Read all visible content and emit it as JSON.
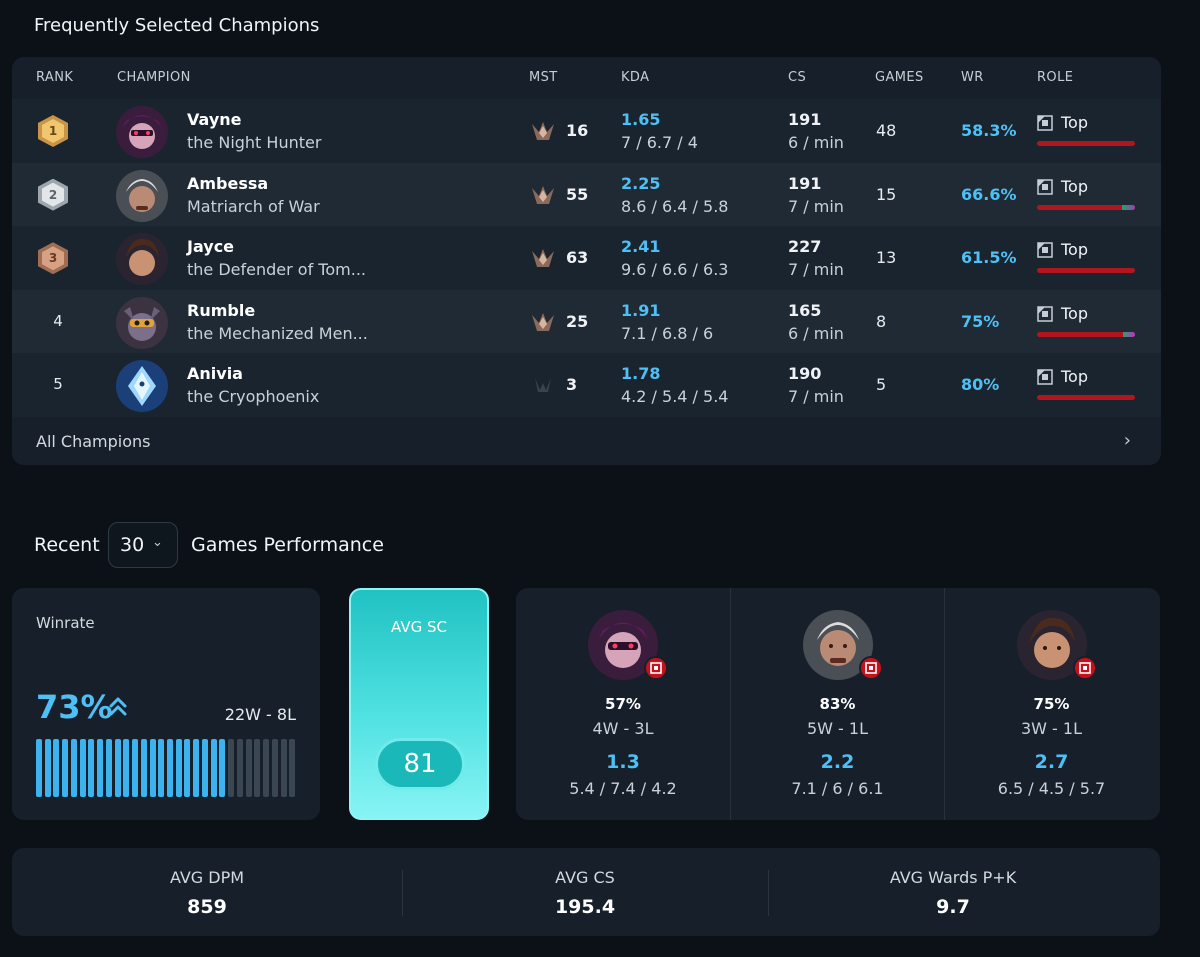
{
  "section_title": "Frequently Selected Champions",
  "table": {
    "headers": {
      "rank": "RANK",
      "champion": "CHAMPION",
      "mst": "MST",
      "kda": "KDA",
      "cs": "CS",
      "games": "GAMES",
      "wr": "WR",
      "role": "ROLE"
    },
    "rows": [
      {
        "rank": "1",
        "medal": "gold",
        "name": "Vayne",
        "title": "the Night Hunter",
        "mastery": "16",
        "kda_ratio": "1.65",
        "kda": "7 / 6.7 / 4",
        "cs": "191",
        "cs_per_min": "6 / min",
        "games": "48",
        "winrate": "58.3%",
        "role": "Top",
        "role_share": 1.0,
        "extra_color": ""
      },
      {
        "rank": "2",
        "medal": "silver",
        "name": "Ambessa",
        "title": "Matriarch of War",
        "mastery": "55",
        "kda_ratio": "2.25",
        "kda": "8.6 / 6.4 / 5.8",
        "cs": "191",
        "cs_per_min": "7 / min",
        "games": "15",
        "winrate": "66.6%",
        "role": "Top",
        "role_share": 0.87,
        "extra_color": "#9b3fb0"
      },
      {
        "rank": "3",
        "medal": "bronze",
        "name": "Jayce",
        "title": "the Defender of Tom...",
        "mastery": "63",
        "kda_ratio": "2.41",
        "kda": "9.6 / 6.6 / 6.3",
        "cs": "227",
        "cs_per_min": "7 / min",
        "games": "13",
        "winrate": "61.5%",
        "role": "Top",
        "role_share": 1.0,
        "extra_color": ""
      },
      {
        "rank": "4",
        "medal": "",
        "name": "Rumble",
        "title": "the Mechanized Men...",
        "mastery": "25",
        "kda_ratio": "1.91",
        "kda": "7.1 / 6.8 / 6",
        "cs": "165",
        "cs_per_min": "6 / min",
        "games": "8",
        "winrate": "75%",
        "role": "Top",
        "role_share": 0.88,
        "extra_color": "#c030c8"
      },
      {
        "rank": "5",
        "medal": "",
        "name": "Anivia",
        "title": "the Cryophoenix",
        "mastery": "3",
        "kda_ratio": "1.78",
        "kda": "4.2 / 5.4 / 5.4",
        "cs": "190",
        "cs_per_min": "7 / min",
        "games": "5",
        "winrate": "80%",
        "role": "Top",
        "role_share": 1.0,
        "extra_color": ""
      }
    ],
    "all_champions_label": "All Champions",
    "all_champions_icon": "chevron-right-icon"
  },
  "recent": {
    "prefix": "Recent",
    "count": "30",
    "suffix": "Games Performance"
  },
  "winrate_card": {
    "title": "Winrate",
    "percent": "73%",
    "record": "22W - 8L",
    "wins": 22,
    "losses": 8,
    "trend_icon": "double-chevron-up-icon"
  },
  "avg_sc": {
    "title": "AVG SC",
    "value": "81"
  },
  "top_champions": [
    {
      "champion": "Vayne",
      "winrate": "57%",
      "record": "4W - 3L",
      "kda_ratio": "1.3",
      "kda": "5.4 / 7.4 / 4.2"
    },
    {
      "champion": "Ambessa",
      "winrate": "83%",
      "record": "5W - 1L",
      "kda_ratio": "2.2",
      "kda": "7.1 / 6 / 6.1"
    },
    {
      "champion": "Jayce",
      "winrate": "75%",
      "record": "3W - 1L",
      "kda_ratio": "2.7",
      "kda": "6.5 / 4.5 / 5.7"
    }
  ],
  "avg_stats": [
    {
      "label": "AVG DPM",
      "value": "859"
    },
    {
      "label": "AVG CS",
      "value": "195.4"
    },
    {
      "label": "AVG Wards P+K",
      "value": "9.7"
    }
  ],
  "colors": {
    "accent_blue": "#4fc0f5",
    "role_bar": "#b3151f",
    "sc_teal": "#50e1e2"
  }
}
